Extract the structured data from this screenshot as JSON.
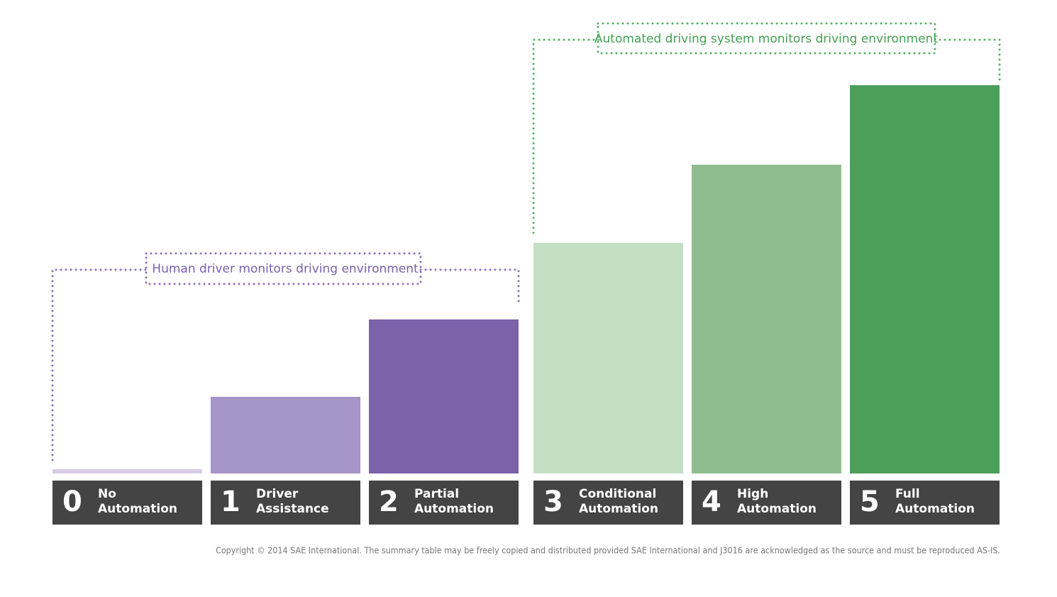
{
  "annotations": {
    "human": "Human driver monitors driving environment",
    "system": "Automated driving system monitors driving environment"
  },
  "levels": [
    {
      "number": "0",
      "label": [
        "No",
        "Automation"
      ]
    },
    {
      "number": "1",
      "label": [
        "Driver",
        "Assistance"
      ]
    },
    {
      "number": "2",
      "label": [
        "Partial",
        "Automation"
      ]
    },
    {
      "number": "3",
      "label": [
        "Conditional",
        "Automation"
      ]
    },
    {
      "number": "4",
      "label": [
        "High",
        "Automation"
      ]
    },
    {
      "number": "5",
      "label": [
        "Full",
        "Automation"
      ]
    }
  ],
  "copyright": "Copyright © 2014 SAE International. The summary table may be freely copied and distributed provided SAE International and J3016 are acknowledged as the source and must be reproduced AS-IS."
}
